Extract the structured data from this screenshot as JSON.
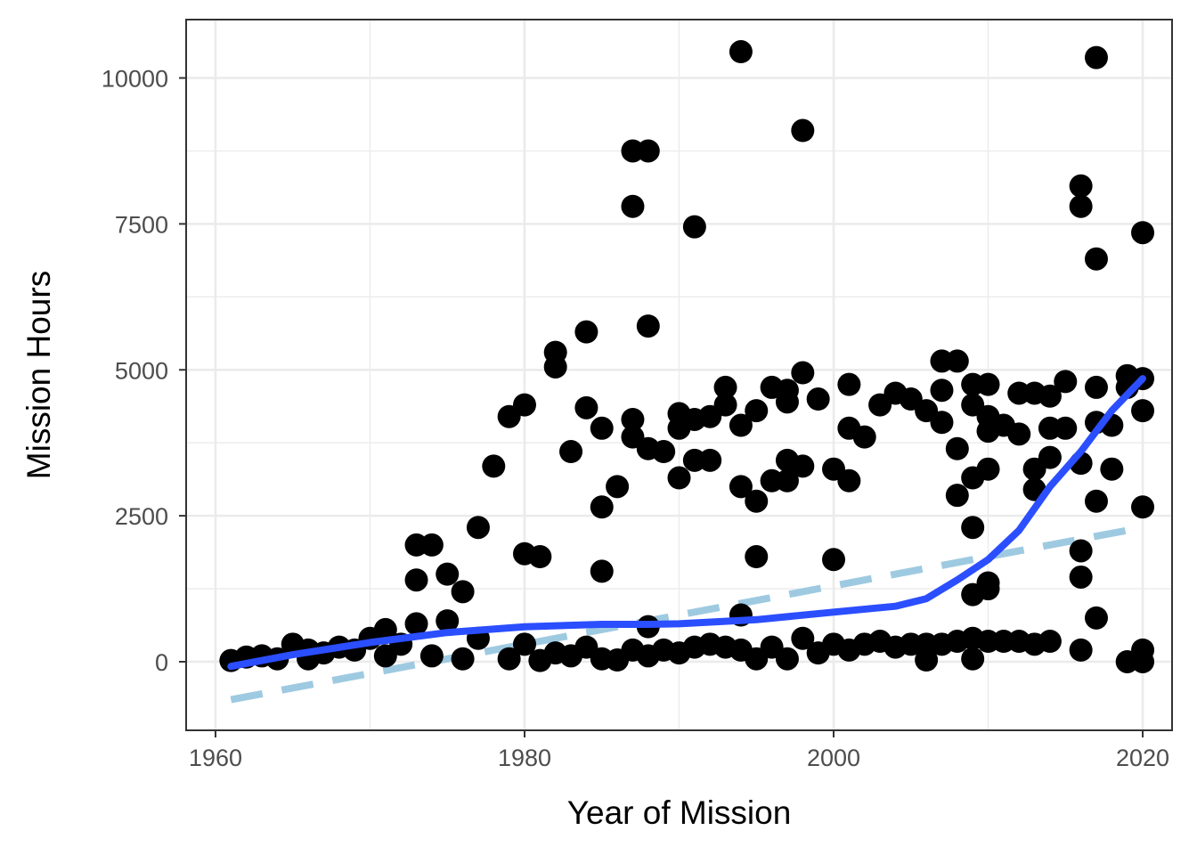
{
  "chart_data": {
    "type": "scatter",
    "xlabel": "Year of Mission",
    "ylabel": "Mission Hours",
    "xlim": [
      1958.1,
      1922.0
    ],
    "ylim": [
      -1175,
      11000
    ],
    "x_ticks": [
      1960,
      1980,
      2000,
      2020
    ],
    "x_tick_labels": [
      "1960",
      "1980",
      "2000",
      "2020"
    ],
    "y_ticks": [
      0,
      2500,
      5000,
      7500,
      10000
    ],
    "y_tick_labels": [
      "0",
      "2500",
      "5000",
      "7500",
      "10000"
    ],
    "grid": true,
    "legend": "none",
    "colors": {
      "points": "#000000",
      "smooth": "#2b4eff",
      "linear": "#9ecae1"
    },
    "points": [
      [
        1961,
        20
      ],
      [
        1962,
        80
      ],
      [
        1963,
        100
      ],
      [
        1964,
        50
      ],
      [
        1965,
        300
      ],
      [
        1966,
        200
      ],
      [
        1966,
        50
      ],
      [
        1967,
        150
      ],
      [
        1968,
        250
      ],
      [
        1969,
        200
      ],
      [
        1970,
        400
      ],
      [
        1971,
        550
      ],
      [
        1971,
        100
      ],
      [
        1972,
        300
      ],
      [
        1973,
        650
      ],
      [
        1973,
        1400
      ],
      [
        1973,
        2000
      ],
      [
        1974,
        2000
      ],
      [
        1974,
        100
      ],
      [
        1975,
        700
      ],
      [
        1975,
        1500
      ],
      [
        1976,
        1200
      ],
      [
        1976,
        50
      ],
      [
        1977,
        2300
      ],
      [
        1977,
        400
      ],
      [
        1978,
        3350
      ],
      [
        1979,
        4200
      ],
      [
        1979,
        50
      ],
      [
        1980,
        4400
      ],
      [
        1980,
        1850
      ],
      [
        1980,
        300
      ],
      [
        1981,
        1800
      ],
      [
        1981,
        20
      ],
      [
        1982,
        5300
      ],
      [
        1982,
        5050
      ],
      [
        1982,
        150
      ],
      [
        1983,
        3600
      ],
      [
        1983,
        100
      ],
      [
        1984,
        5650
      ],
      [
        1984,
        4350
      ],
      [
        1984,
        250
      ],
      [
        1985,
        4000
      ],
      [
        1985,
        2650
      ],
      [
        1985,
        1550
      ],
      [
        1985,
        50
      ],
      [
        1986,
        3000
      ],
      [
        1986,
        30
      ],
      [
        1987,
        8750
      ],
      [
        1987,
        7800
      ],
      [
        1987,
        4150
      ],
      [
        1987,
        3850
      ],
      [
        1987,
        200
      ],
      [
        1988,
        8750
      ],
      [
        1988,
        5750
      ],
      [
        1988,
        3650
      ],
      [
        1988,
        600
      ],
      [
        1988,
        100
      ],
      [
        1989,
        3600
      ],
      [
        1989,
        200
      ],
      [
        1990,
        4250
      ],
      [
        1990,
        4000
      ],
      [
        1990,
        3150
      ],
      [
        1990,
        150
      ],
      [
        1991,
        7450
      ],
      [
        1991,
        4150
      ],
      [
        1991,
        3450
      ],
      [
        1991,
        250
      ],
      [
        1992,
        4200
      ],
      [
        1992,
        3450
      ],
      [
        1992,
        300
      ],
      [
        1993,
        4700
      ],
      [
        1993,
        4400
      ],
      [
        1993,
        250
      ],
      [
        1994,
        10450
      ],
      [
        1994,
        4050
      ],
      [
        1994,
        3000
      ],
      [
        1994,
        800
      ],
      [
        1994,
        200
      ],
      [
        1995,
        4300
      ],
      [
        1995,
        2750
      ],
      [
        1995,
        1800
      ],
      [
        1995,
        50
      ],
      [
        1996,
        4700
      ],
      [
        1996,
        3100
      ],
      [
        1996,
        250
      ],
      [
        1997,
        4650
      ],
      [
        1997,
        4450
      ],
      [
        1997,
        3450
      ],
      [
        1997,
        3100
      ],
      [
        1997,
        50
      ],
      [
        1998,
        9100
      ],
      [
        1998,
        4950
      ],
      [
        1998,
        3350
      ],
      [
        1998,
        400
      ],
      [
        1999,
        4500
      ],
      [
        1999,
        150
      ],
      [
        2000,
        3300
      ],
      [
        2000,
        1750
      ],
      [
        2000,
        300
      ],
      [
        2001,
        4750
      ],
      [
        2001,
        4000
      ],
      [
        2001,
        3100
      ],
      [
        2001,
        200
      ],
      [
        2002,
        3850
      ],
      [
        2002,
        300
      ],
      [
        2003,
        4400
      ],
      [
        2003,
        350
      ],
      [
        2004,
        4600
      ],
      [
        2004,
        250
      ],
      [
        2005,
        4500
      ],
      [
        2005,
        300
      ],
      [
        2006,
        4300
      ],
      [
        2006,
        30
      ],
      [
        2006,
        300
      ],
      [
        2007,
        5150
      ],
      [
        2007,
        4650
      ],
      [
        2007,
        4100
      ],
      [
        2007,
        300
      ],
      [
        2008,
        5150
      ],
      [
        2008,
        3650
      ],
      [
        2008,
        2850
      ],
      [
        2008,
        350
      ],
      [
        2009,
        4750
      ],
      [
        2009,
        4400
      ],
      [
        2009,
        3150
      ],
      [
        2009,
        2300
      ],
      [
        2009,
        1150
      ],
      [
        2009,
        400
      ],
      [
        2009,
        50
      ],
      [
        2010,
        4750
      ],
      [
        2010,
        4200
      ],
      [
        2010,
        3950
      ],
      [
        2010,
        3300
      ],
      [
        2010,
        1350
      ],
      [
        2010,
        1250
      ],
      [
        2010,
        350
      ],
      [
        2011,
        4050
      ],
      [
        2011,
        350
      ],
      [
        2012,
        4600
      ],
      [
        2012,
        3900
      ],
      [
        2012,
        350
      ],
      [
        2013,
        4600
      ],
      [
        2013,
        3300
      ],
      [
        2013,
        2950
      ],
      [
        2013,
        300
      ],
      [
        2014,
        4550
      ],
      [
        2014,
        4000
      ],
      [
        2014,
        3500
      ],
      [
        2014,
        350
      ],
      [
        2015,
        4800
      ],
      [
        2015,
        4000
      ],
      [
        2016,
        8150
      ],
      [
        2016,
        7800
      ],
      [
        2016,
        3400
      ],
      [
        2016,
        1900
      ],
      [
        2016,
        1450
      ],
      [
        2016,
        200
      ],
      [
        2017,
        10350
      ],
      [
        2017,
        6900
      ],
      [
        2017,
        4700
      ],
      [
        2017,
        4100
      ],
      [
        2017,
        2750
      ],
      [
        2017,
        750
      ],
      [
        2018,
        4050
      ],
      [
        2018,
        3300
      ],
      [
        2019,
        4900
      ],
      [
        2019,
        4700
      ],
      [
        2019,
        0
      ],
      [
        2020,
        7350
      ],
      [
        2020,
        4850
      ],
      [
        2020,
        4300
      ],
      [
        2020,
        2650
      ],
      [
        2020,
        200
      ],
      [
        2020,
        0
      ]
    ],
    "smooth_fit": [
      [
        1961,
        -80
      ],
      [
        1965,
        120
      ],
      [
        1970,
        330
      ],
      [
        1975,
        500
      ],
      [
        1980,
        600
      ],
      [
        1985,
        640
      ],
      [
        1988,
        640
      ],
      [
        1990,
        650
      ],
      [
        1995,
        720
      ],
      [
        2000,
        850
      ],
      [
        2004,
        950
      ],
      [
        2006,
        1080
      ],
      [
        2008,
        1400
      ],
      [
        2010,
        1750
      ],
      [
        2012,
        2250
      ],
      [
        2014,
        3000
      ],
      [
        2016,
        3600
      ],
      [
        2018,
        4300
      ],
      [
        2020,
        4850
      ]
    ],
    "linear_fit": [
      [
        1961,
        -650
      ],
      [
        2020,
        2300
      ]
    ]
  }
}
